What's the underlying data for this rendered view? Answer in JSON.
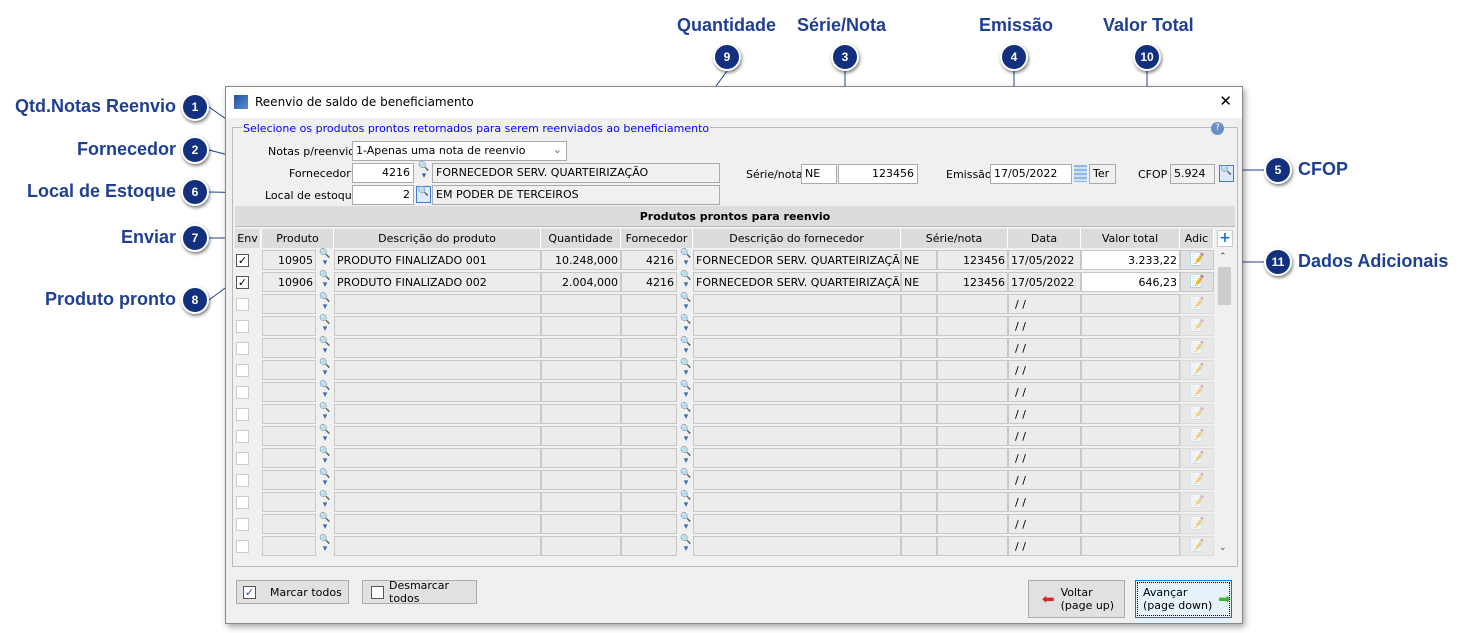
{
  "callouts": [
    {
      "n": "1",
      "label": "Qtd.Notas Reenvio"
    },
    {
      "n": "2",
      "label": "Fornecedor"
    },
    {
      "n": "6",
      "label": "Local de Estoque"
    },
    {
      "n": "7",
      "label": "Enviar"
    },
    {
      "n": "8",
      "label": "Produto pronto"
    },
    {
      "n": "9",
      "label": "Quantidade"
    },
    {
      "n": "3",
      "label": "Série/Nota"
    },
    {
      "n": "4",
      "label": "Emissão"
    },
    {
      "n": "10",
      "label": "Valor Total"
    },
    {
      "n": "5",
      "label": "CFOP"
    },
    {
      "n": "11",
      "label": "Dados Adicionais"
    }
  ],
  "window": {
    "title": "Reenvio de saldo de beneficiamento",
    "close": "✕",
    "help": "?"
  },
  "form": {
    "group_title": "Selecione os produtos prontos retornados para serem reenviados ao beneficiamento",
    "notas_label": "Notas p/reenvio",
    "notas_value": "1-Apenas uma nota de reenvio",
    "fornecedor_label": "Fornecedor",
    "fornecedor_code": "4216",
    "fornecedor_name": "FORNECEDOR SERV. QUARTEIRIZAÇÃO",
    "local_label": "Local de estoque",
    "local_code": "2",
    "local_name": "EM PODER DE TERCEIROS",
    "serie_label": "Série/nota",
    "serie": "NE",
    "nota": "123456",
    "emissao_label": "Emissão",
    "emissao": "17/05/2022",
    "weekday": "Ter",
    "cfop_label": "CFOP",
    "cfop": "5.924"
  },
  "grid": {
    "title": "Produtos prontos para reenvio",
    "columns": [
      "Env",
      "Produto",
      "Descrição do produto",
      "Quantidade",
      "Fornecedor",
      "Descrição do fornecedor",
      "Série/nota",
      "Data",
      "Valor total",
      "Adic"
    ],
    "add": "+",
    "rows": [
      {
        "checked": true,
        "produto": "10905",
        "descricao": "PRODUTO FINALIZADO 001",
        "quantidade": "10.248,000",
        "fornecedor": "4216",
        "desc_fornecedor": "FORNECEDOR SERV. QUARTEIRIZAÇÃO",
        "serie": "NE",
        "nota": "123456",
        "data": "17/05/2022",
        "valor": "3.233,22"
      },
      {
        "checked": true,
        "produto": "10906",
        "descricao": "PRODUTO FINALIZADO 002",
        "quantidade": "2.004,000",
        "fornecedor": "4216",
        "desc_fornecedor": "FORNECEDOR SERV. QUARTEIRIZAÇÃO",
        "serie": "NE",
        "nota": "123456",
        "data": "17/05/2022",
        "valor": "646,23"
      },
      {
        "checked": false,
        "data": "/ /"
      },
      {
        "checked": false,
        "data": "/ /"
      },
      {
        "checked": false,
        "data": "/ /"
      },
      {
        "checked": false,
        "data": "/ /"
      },
      {
        "checked": false,
        "data": "/ /"
      },
      {
        "checked": false,
        "data": "/ /"
      },
      {
        "checked": false,
        "data": "/ /"
      },
      {
        "checked": false,
        "data": "/ /"
      },
      {
        "checked": false,
        "data": "/ /"
      },
      {
        "checked": false,
        "data": "/ /"
      },
      {
        "checked": false,
        "data": "/ /"
      },
      {
        "checked": false,
        "data": "/ /"
      }
    ]
  },
  "buttons": {
    "marcar": "Marcar todos",
    "desmarcar": "Desmarcar todos",
    "voltar": "Voltar",
    "voltar_sub": "(page up)",
    "avancar": "Avançar",
    "avancar_sub": "(page down)"
  },
  "colors": {
    "callout": "#1f3f94",
    "badge": "#12307d",
    "group_title": "#0000ff"
  }
}
